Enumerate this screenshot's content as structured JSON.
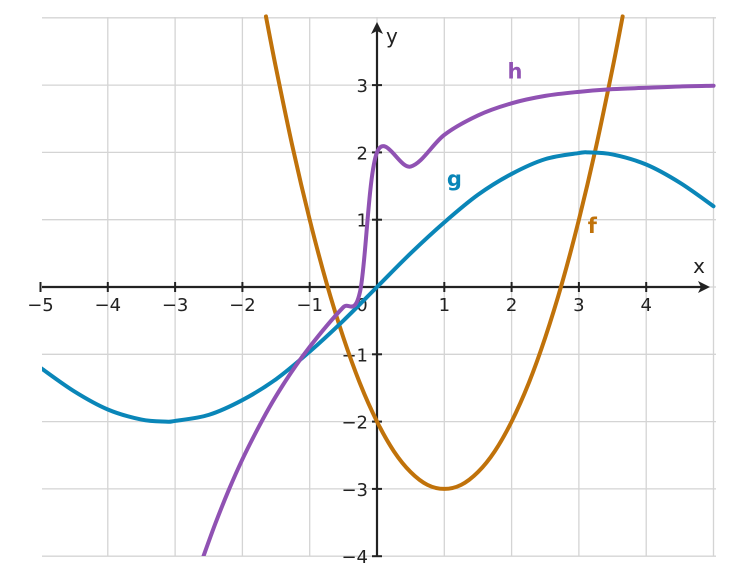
{
  "chart_data": {
    "type": "line",
    "xlabel": "x",
    "ylabel": "y",
    "xlim": [
      -5,
      5
    ],
    "ylim": [
      -4,
      4
    ],
    "x_ticks": [
      -5,
      -4,
      -3,
      -2,
      -1,
      0,
      1,
      2,
      3,
      4
    ],
    "y_ticks": [
      -4,
      -3,
      -2,
      -1,
      1,
      2,
      3
    ],
    "x_tick_labels": [
      "−5",
      "−4",
      "−3",
      "−2",
      "−1",
      "0",
      "1",
      "2",
      "3",
      "4"
    ],
    "y_tick_labels": [
      "−4",
      "−3",
      "−2",
      "−1",
      "1",
      "2",
      "3"
    ],
    "grid": true,
    "series": [
      {
        "name": "f",
        "color": "#c0720a",
        "x": [
          -1.65,
          -1.5,
          -1.25,
          -1,
          -0.75,
          -0.5,
          -0.25,
          0,
          0.25,
          0.5,
          0.75,
          1,
          1.25,
          1.5,
          1.75,
          2,
          2.25,
          2.5,
          2.75,
          3,
          3.25,
          3.5,
          3.65
        ],
        "y": [
          4.02,
          3.25,
          2.06,
          1.0,
          0.06,
          -0.75,
          -1.44,
          -2.0,
          -2.44,
          -2.75,
          -2.94,
          -3.0,
          -2.94,
          -2.75,
          -2.44,
          -2.0,
          -1.44,
          -0.75,
          0.06,
          1.0,
          2.06,
          3.25,
          4.02
        ],
        "label_x": 3.2,
        "label_y": 0.8
      },
      {
        "name": "g",
        "color": "#0a86b8",
        "x": [
          -5,
          -4.5,
          -4,
          -3.5,
          -3.14,
          -3,
          -2.5,
          -2,
          -1.5,
          -1,
          -0.5,
          0,
          0.5,
          1,
          1.5,
          2,
          2.5,
          3,
          3.14,
          3.5,
          4,
          4.5,
          5
        ],
        "y": [
          -1.2,
          -1.55,
          -1.82,
          -1.97,
          -2.0,
          -1.99,
          -1.9,
          -1.68,
          -1.37,
          -0.96,
          -0.5,
          0.0,
          0.5,
          0.96,
          1.37,
          1.68,
          1.9,
          1.99,
          2.0,
          1.97,
          1.82,
          1.55,
          1.2
        ],
        "label_x": 1.15,
        "label_y": 1.5
      },
      {
        "name": "h",
        "color": "#9052b3",
        "x": [
          -2.6,
          -2.4,
          -2.2,
          -2,
          -1.8,
          -1.6,
          -1.4,
          -1.2,
          -1,
          -0.75,
          -0.5,
          -0.25,
          0,
          0.5,
          1,
          1.5,
          2,
          2.5,
          3,
          3.5,
          4,
          4.5,
          5
        ],
        "y": [
          -4.06,
          -3.51,
          -3.01,
          -2.56,
          -2.16,
          -1.79,
          -1.46,
          -1.16,
          -0.89,
          -0.58,
          -0.3,
          -0.06,
          2.0,
          1.79,
          2.26,
          2.55,
          2.73,
          2.84,
          2.9,
          2.94,
          2.96,
          2.98,
          2.99
        ],
        "label_x": 2.05,
        "label_y": 3.1
      }
    ]
  }
}
